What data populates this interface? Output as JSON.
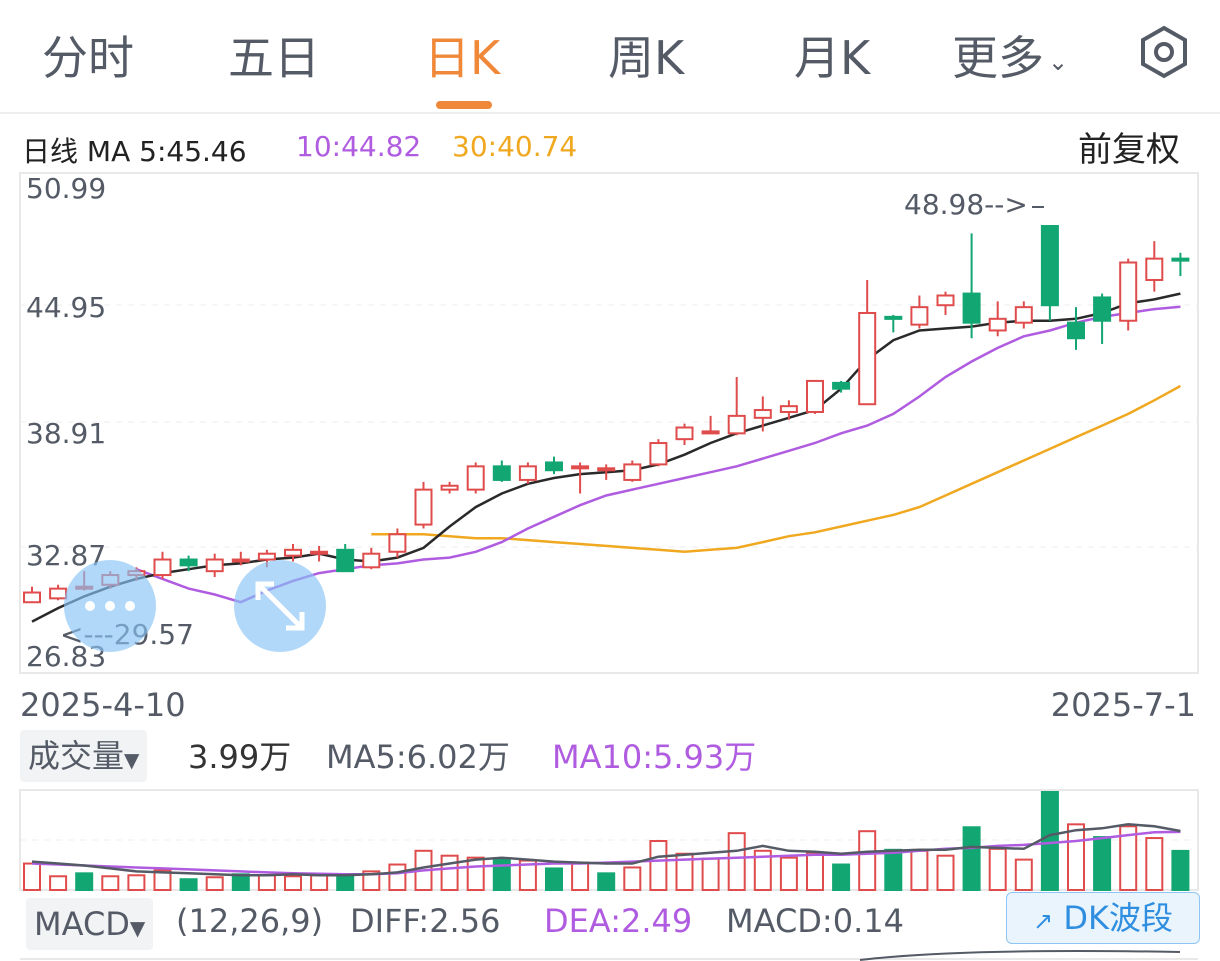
{
  "tabs": [
    "分时",
    "五日",
    "日K",
    "周K",
    "月K",
    "更多"
  ],
  "active_tab": "日K",
  "price_panel": {
    "period_label": "日线",
    "ma_prefix": "MA",
    "ma5_label": "5:45.46",
    "ma10_label": "10:44.82",
    "ma30_label": "30:40.74",
    "adjust_label": "前复权",
    "y_ticks": [
      "50.99",
      "44.95",
      "38.91",
      "32.87",
      "26.83"
    ],
    "max_annotation": "48.98-->",
    "min_annotation": "<---29.57",
    "start_date": "2025-4-10",
    "end_date": "2025-7-1"
  },
  "volume_panel": {
    "selector": "成交量",
    "value": "3.99万",
    "ma5": "MA5:6.02万",
    "ma10": "MA10:5.93万"
  },
  "macd_panel": {
    "selector": "MACD",
    "params": "(12,26,9)",
    "diff": "DIFF:2.56",
    "dea": "DEA:2.49",
    "macd": "MACD:0.14"
  },
  "dk_button": "DK波段",
  "colors": {
    "up": "#e04b4b",
    "down": "#12a672",
    "ma5": "#2a2a2a",
    "ma10": "#b05ce0",
    "ma30": "#f0a820",
    "accent": "#f0883a"
  },
  "chart_data": {
    "type": "candlestick",
    "y_range": [
      26.83,
      50.99
    ],
    "x_range": [
      "2025-4-10",
      "2025-7-1"
    ],
    "candles_ohlc": [
      [
        29.6,
        30.4,
        29.57,
        30.1
      ],
      [
        29.8,
        30.5,
        29.7,
        30.3
      ],
      [
        30.4,
        31.2,
        30.2,
        30.4
      ],
      [
        30.5,
        31.2,
        30.3,
        31.0
      ],
      [
        31.0,
        31.4,
        30.7,
        31.2
      ],
      [
        31.0,
        32.2,
        30.8,
        31.8
      ],
      [
        31.8,
        32.0,
        31.2,
        31.5
      ],
      [
        31.2,
        32.1,
        30.9,
        31.8
      ],
      [
        31.7,
        32.2,
        31.5,
        31.8
      ],
      [
        31.8,
        32.3,
        31.4,
        32.1
      ],
      [
        32.0,
        32.6,
        31.7,
        32.3
      ],
      [
        32.1,
        32.5,
        31.7,
        32.2
      ],
      [
        32.3,
        32.6,
        31.2,
        31.2
      ],
      [
        31.4,
        32.4,
        31.3,
        32.1
      ],
      [
        32.2,
        33.4,
        31.9,
        33.1
      ],
      [
        33.6,
        35.8,
        33.4,
        35.4
      ],
      [
        35.4,
        35.8,
        35.2,
        35.6
      ],
      [
        35.4,
        36.8,
        35.2,
        36.6
      ],
      [
        36.6,
        36.9,
        35.8,
        35.9
      ],
      [
        35.9,
        36.8,
        35.7,
        36.6
      ],
      [
        36.8,
        37.1,
        36.2,
        36.4
      ],
      [
        36.5,
        36.8,
        35.2,
        36.6
      ],
      [
        36.5,
        36.7,
        35.9,
        36.5
      ],
      [
        35.9,
        36.9,
        35.8,
        36.7
      ],
      [
        36.7,
        38.0,
        36.6,
        37.8
      ],
      [
        38.0,
        38.8,
        37.7,
        38.6
      ],
      [
        38.4,
        39.2,
        38.3,
        38.4
      ],
      [
        38.3,
        41.2,
        38.2,
        39.2
      ],
      [
        39.1,
        40.2,
        38.4,
        39.5
      ],
      [
        39.4,
        40.0,
        39.0,
        39.7
      ],
      [
        39.4,
        41.0,
        39.3,
        41.0
      ],
      [
        40.9,
        41.0,
        40.4,
        40.6
      ],
      [
        39.8,
        46.2,
        39.8,
        44.5
      ],
      [
        44.3,
        44.4,
        43.5,
        44.2
      ],
      [
        43.9,
        45.4,
        43.7,
        44.8
      ],
      [
        44.9,
        45.6,
        44.4,
        45.4
      ],
      [
        45.5,
        48.6,
        43.2,
        44.0
      ],
      [
        43.6,
        45.1,
        43.3,
        44.2
      ],
      [
        44.0,
        45.1,
        43.7,
        44.8
      ],
      [
        48.98,
        48.98,
        44.1,
        44.9
      ],
      [
        44.0,
        44.8,
        42.6,
        43.2
      ],
      [
        45.3,
        45.5,
        42.9,
        44.1
      ],
      [
        44.1,
        47.3,
        43.6,
        47.1
      ],
      [
        46.2,
        48.2,
        45.6,
        47.3
      ],
      [
        47.3,
        47.6,
        46.4,
        47.2
      ]
    ],
    "ma5": [
      28.6,
      29.3,
      29.9,
      30.4,
      30.8,
      31.1,
      31.3,
      31.5,
      31.6,
      31.8,
      31.9,
      32.1,
      31.8,
      31.7,
      31.9,
      32.4,
      33.5,
      34.5,
      35.2,
      35.7,
      36.0,
      36.2,
      36.3,
      36.4,
      36.7,
      37.2,
      37.8,
      38.3,
      38.7,
      39.1,
      39.5,
      40.6,
      42.1,
      43.1,
      43.6,
      43.7,
      43.8,
      44.0,
      44.1,
      44.1,
      44.2,
      44.5,
      45.0,
      45.2,
      45.5
    ],
    "ma10": [
      31.3,
      30.8,
      30.3,
      30.0,
      29.6,
      30.2,
      30.7,
      31.1,
      31.3,
      31.5,
      31.6,
      31.8,
      31.9,
      32.2,
      32.7,
      33.4,
      34.0,
      34.6,
      35.1,
      35.4,
      35.7,
      36.0,
      36.3,
      36.6,
      37.0,
      37.4,
      37.8,
      38.3,
      38.7,
      39.3,
      40.2,
      41.2,
      42.0,
      42.7,
      43.3,
      43.6,
      44.0,
      44.3,
      44.5,
      44.7,
      44.82
    ],
    "ma30": [
      33.1,
      33.1,
      33.1,
      33.0,
      32.9,
      32.9,
      32.8,
      32.7,
      32.6,
      32.5,
      32.4,
      32.3,
      32.2,
      32.3,
      32.4,
      32.7,
      33.0,
      33.2,
      33.5,
      33.8,
      34.1,
      34.5,
      35.1,
      35.7,
      36.3,
      36.9,
      37.5,
      38.1,
      38.7,
      39.3,
      40.0,
      40.74
    ],
    "volume": {
      "unit": "万",
      "bars": [
        {
          "v": 2.7,
          "up": true
        },
        {
          "v": 1.4,
          "up": true
        },
        {
          "v": 1.7,
          "up": false
        },
        {
          "v": 1.4,
          "up": true
        },
        {
          "v": 1.5,
          "up": true
        },
        {
          "v": 2.0,
          "up": true
        },
        {
          "v": 1.1,
          "up": false
        },
        {
          "v": 1.3,
          "up": true
        },
        {
          "v": 1.6,
          "up": false
        },
        {
          "v": 1.5,
          "up": true
        },
        {
          "v": 1.4,
          "up": true
        },
        {
          "v": 1.5,
          "up": true
        },
        {
          "v": 1.6,
          "up": false
        },
        {
          "v": 1.9,
          "up": true
        },
        {
          "v": 2.6,
          "up": true
        },
        {
          "v": 4.0,
          "up": true
        },
        {
          "v": 3.5,
          "up": true
        },
        {
          "v": 3.3,
          "up": true
        },
        {
          "v": 3.2,
          "up": false
        },
        {
          "v": 3.0,
          "up": true
        },
        {
          "v": 2.2,
          "up": false
        },
        {
          "v": 2.8,
          "up": true
        },
        {
          "v": 1.7,
          "up": false
        },
        {
          "v": 2.3,
          "up": true
        },
        {
          "v": 5.0,
          "up": true
        },
        {
          "v": 3.7,
          "up": true
        },
        {
          "v": 3.2,
          "up": true
        },
        {
          "v": 5.8,
          "up": true
        },
        {
          "v": 4.0,
          "up": true
        },
        {
          "v": 3.3,
          "up": true
        },
        {
          "v": 3.8,
          "up": true
        },
        {
          "v": 2.6,
          "up": false
        },
        {
          "v": 6.0,
          "up": true
        },
        {
          "v": 4.1,
          "up": false
        },
        {
          "v": 4.0,
          "up": true
        },
        {
          "v": 3.5,
          "up": true
        },
        {
          "v": 6.4,
          "up": false
        },
        {
          "v": 4.2,
          "up": true
        },
        {
          "v": 3.1,
          "up": true
        },
        {
          "v": 10.0,
          "up": false
        },
        {
          "v": 6.7,
          "up": true
        },
        {
          "v": 5.4,
          "up": false
        },
        {
          "v": 6.5,
          "up": true
        },
        {
          "v": 5.3,
          "up": true
        },
        {
          "v": 3.99,
          "up": false
        }
      ],
      "ma5": [
        2.9,
        2.7,
        2.5,
        2.2,
        1.9,
        1.8,
        1.7,
        1.6,
        1.5,
        1.5,
        1.6,
        1.5,
        1.5,
        1.6,
        1.8,
        2.3,
        2.7,
        3.1,
        3.3,
        3.1,
        2.9,
        2.8,
        2.7,
        2.7,
        3.4,
        3.6,
        3.8,
        4.0,
        4.5,
        4.0,
        3.9,
        3.7,
        3.9,
        4.0,
        4.1,
        4.1,
        4.4,
        4.3,
        4.2,
        5.6,
        6.1,
        6.3,
        6.7,
        6.5,
        6.02
      ],
      "ma10": [
        2.7,
        2.6,
        2.5,
        2.4,
        2.3,
        2.2,
        2.1,
        2.0,
        1.9,
        1.8,
        1.7,
        1.65,
        1.6,
        1.6,
        1.7,
        2.0,
        2.2,
        2.4,
        2.5,
        2.6,
        2.7,
        2.7,
        2.8,
        2.9,
        3.0,
        3.1,
        3.2,
        3.3,
        3.4,
        3.5,
        3.6,
        3.6,
        3.7,
        3.8,
        4.0,
        4.2,
        4.3,
        4.5,
        4.6,
        4.8,
        5.0,
        5.3,
        5.6,
        5.9,
        5.93
      ]
    },
    "macd": {
      "diff": 2.56,
      "dea": 2.49,
      "macd": 0.14
    }
  }
}
